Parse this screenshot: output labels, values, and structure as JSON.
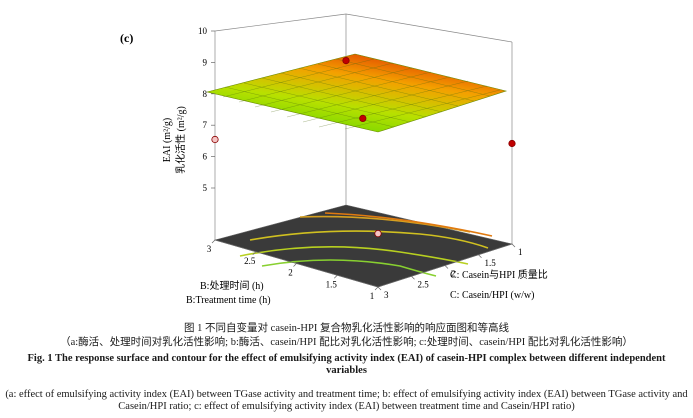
{
  "panel_label": "(c)",
  "figure": {
    "caption_cn_title": "图 1 不同自变量对 casein-HPI 复合物乳化活性影响的响应面图和等高线",
    "caption_cn_sub": "（a:酶活、处理时间对乳化活性影响; b:酶活、casein/HPI 配比对乳化活性影响; c:处理时间、casein/HPI 配比对乳化活性影响）",
    "caption_en_title": "Fig. 1 The response surface and contour for the effect of emulsifying activity index (EAI) of casein-HPI complex between different independent variables",
    "caption_en_sub": "(a: effect of emulsifying activity index (EAI) between TGase activity and treatment time; b: effect of emulsifying activity index (EAI) between TGase activity and Casein/HPI ratio; c: effect of emulsifying activity index (EAI) between treatment time and Casein/HPI ratio)"
  },
  "watermark": "",
  "chart_data": {
    "type": "surface3d",
    "zlabel_en": "EAI (m²/g)",
    "zlabel_cn": "乳化活性 (m²/g)",
    "xlabel_cn": "B:处理时间 (h)",
    "xlabel_en": "B:Treatment time (h)",
    "ylabel_cn": "C: Casein与HPI 质量比",
    "ylabel_en": "C: Casein/HPI (w/w)",
    "z_ticks": [
      "5",
      "6",
      "7",
      "8",
      "9",
      "10"
    ],
    "x_ticks": [
      "1",
      "1.5",
      "2",
      "2.5",
      "3"
    ],
    "y_ticks": [
      "3",
      "2.5",
      "2",
      "1.5",
      "1"
    ],
    "zlim": [
      5,
      10
    ],
    "xlim": [
      1,
      3
    ],
    "ylim": [
      1,
      3
    ],
    "surface_corners": [
      {
        "treatment_time": 3,
        "casein_hpi": 3,
        "EAI": 8.2
      },
      {
        "treatment_time": 1,
        "casein_hpi": 3,
        "EAI": 7.2
      },
      {
        "treatment_time": 1,
        "casein_hpi": 1,
        "EAI": 8.1
      },
      {
        "treatment_time": 3,
        "casein_hpi": 1,
        "EAI": 9.4
      }
    ],
    "design_points": [
      {
        "treatment_time": 3,
        "casein_hpi": 3,
        "EAI": 8.2,
        "side": "below"
      },
      {
        "treatment_time": 1,
        "casein_hpi": 3,
        "EAI": 6.7,
        "side": "below"
      },
      {
        "treatment_time": 1,
        "casein_hpi": 1,
        "EAI": 8.2,
        "side": "above"
      },
      {
        "treatment_time": 3,
        "casein_hpi": 1,
        "EAI": 9.6,
        "side": "above"
      },
      {
        "treatment_time": 2,
        "casein_hpi": 2,
        "EAI": 9.0,
        "side": "above"
      }
    ]
  }
}
